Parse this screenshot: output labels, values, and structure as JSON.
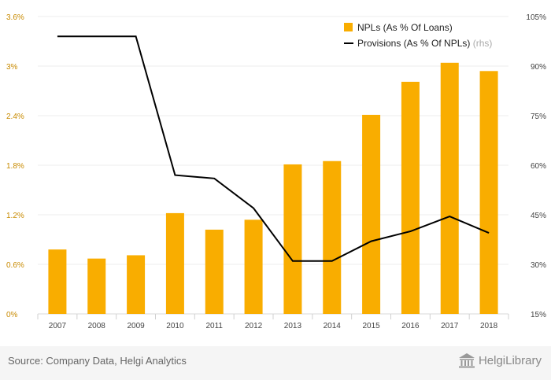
{
  "chart_data": {
    "type": "bar",
    "categories": [
      "2007",
      "2008",
      "2009",
      "2010",
      "2011",
      "2012",
      "2013",
      "2014",
      "2015",
      "2016",
      "2017",
      "2018"
    ],
    "series": [
      {
        "name": "NPLs (As % Of Loans)",
        "type": "bar",
        "axis": "left",
        "color": "#f9ad00",
        "values": [
          0.78,
          0.67,
          0.71,
          1.22,
          1.02,
          1.14,
          1.81,
          1.85,
          2.41,
          2.81,
          3.04,
          2.94
        ]
      },
      {
        "name": "Provisions (As % Of NPLs)",
        "name_note": "(rhs)",
        "type": "line",
        "axis": "right",
        "color": "#000000",
        "values": [
          99.0,
          99.0,
          99.0,
          57.0,
          56.0,
          47.0,
          31.0,
          31.0,
          37.0,
          40.0,
          44.5,
          39.5
        ]
      }
    ],
    "y_left": {
      "min": 0,
      "max": 3.6,
      "ticks": [
        0,
        0.6,
        1.2,
        1.8,
        2.4,
        3.0,
        3.6
      ],
      "tick_labels": [
        "0%",
        "0.6%",
        "1.2%",
        "1.8%",
        "2.4%",
        "3%",
        "3.6%"
      ]
    },
    "y_right": {
      "min": 15,
      "max": 105,
      "ticks": [
        15,
        30,
        45,
        60,
        75,
        90,
        105
      ],
      "tick_labels": [
        "15%",
        "30%",
        "45%",
        "60%",
        "75%",
        "90%",
        "105%"
      ]
    },
    "grid": true,
    "legend_position": "top-right"
  },
  "footer": {
    "source": "Source: Company Data, Helgi Analytics",
    "brand": "HelgiLibrary",
    "brand_icon": "library-building-icon"
  }
}
